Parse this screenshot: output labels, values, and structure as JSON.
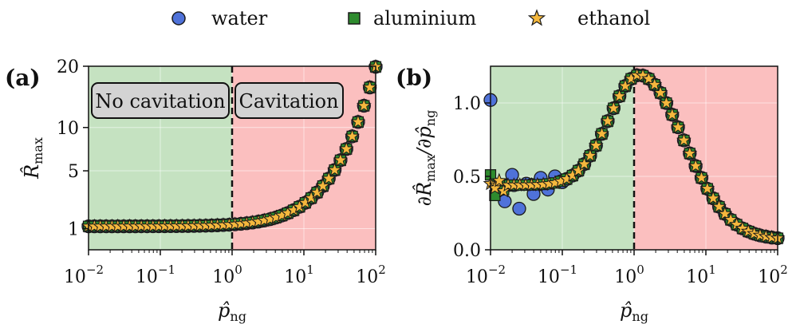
{
  "legend": [
    {
      "label": "water",
      "marker": "circle",
      "color": "#4f72d9"
    },
    {
      "label": "aluminium",
      "marker": "square",
      "color": "#2e8b2e"
    },
    {
      "label": "ethanol",
      "marker": "star",
      "color": "#f5b83d"
    }
  ],
  "colors": {
    "no_cavitation_bg": "#c5e2c1",
    "cavitation_bg": "#fbbfbf",
    "marker_edge": "#1a1a1a",
    "grid": "#ffffff"
  },
  "chart_data": [
    {
      "panel_label": "(a)",
      "type": "scatter",
      "xscale": "log",
      "xlim": [
        0.01,
        100
      ],
      "ylim": [
        0.3,
        20
      ],
      "xticks": [
        0.01,
        0.1,
        1,
        10,
        100
      ],
      "xtick_labels": [
        {
          "base": "10",
          "exp": "−2"
        },
        {
          "base": "10",
          "exp": "−1"
        },
        {
          "base": "10",
          "exp": "0"
        },
        {
          "base": "10",
          "exp": "1"
        },
        {
          "base": "10",
          "exp": "2"
        }
      ],
      "yticks": [
        1,
        5,
        10,
        20
      ],
      "ytick_labels": [
        "1",
        "5",
        "10",
        "20"
      ],
      "xlabel": {
        "main": "p̂",
        "sub": "ng"
      },
      "ylabel": {
        "main": "R̂",
        "sub": "max"
      },
      "threshold_x": 1,
      "regions": [
        {
          "label": "No cavitation"
        },
        {
          "label": "Cavitation"
        }
      ],
      "series": [
        {
          "name": "water",
          "x_logmin": -2,
          "x_logmax": 2,
          "n": 50,
          "model": "radius",
          "jitter": 0
        },
        {
          "name": "aluminium",
          "x_logmin": -2,
          "x_logmax": 2,
          "n": 50,
          "model": "radius",
          "jitter": 0
        },
        {
          "name": "ethanol",
          "x_logmin": -2,
          "x_logmax": 2,
          "n": 50,
          "model": "radius",
          "jitter": 0
        }
      ],
      "model_note": "R_max ≈ 1.1 for p_ng ≪ 1, rising to ≈ 19 at p_ng = 100"
    },
    {
      "panel_label": "(b)",
      "type": "scatter",
      "xscale": "log",
      "xlim": [
        0.01,
        100
      ],
      "ylim": [
        0,
        1.25
      ],
      "xticks": [
        0.01,
        0.1,
        1,
        10,
        100
      ],
      "xtick_labels": [
        {
          "base": "10",
          "exp": "−2"
        },
        {
          "base": "10",
          "exp": "−1"
        },
        {
          "base": "10",
          "exp": "0"
        },
        {
          "base": "10",
          "exp": "1"
        },
        {
          "base": "10",
          "exp": "2"
        }
      ],
      "yticks": [
        0.0,
        0.5,
        1.0
      ],
      "ytick_labels": [
        "0.0",
        "0.5",
        "1.0"
      ],
      "xlabel": {
        "main": "p̂",
        "sub": "ng"
      },
      "ylabel": {
        "main": "∂R̂",
        "sub": "max",
        "mid": "/∂p̂",
        "sub2": "ng"
      },
      "threshold_x": 1,
      "series": [
        {
          "name": "water",
          "x_logmin": -2,
          "x_logmax": 2,
          "n": 50,
          "model": "derivative",
          "overrides": [
            [
              0.01,
              1.02
            ],
            [
              0.0126,
              0.42
            ],
            [
              0.0158,
              0.33
            ],
            [
              0.02,
              0.51
            ],
            [
              0.0251,
              0.28
            ],
            [
              0.0316,
              0.45
            ],
            [
              0.0398,
              0.38
            ],
            [
              0.05,
              0.49
            ],
            [
              0.063,
              0.41
            ],
            [
              0.079,
              0.5
            ],
            [
              0.1,
              0.46
            ]
          ]
        },
        {
          "name": "aluminium",
          "x_logmin": -2,
          "x_logmax": 2,
          "n": 50,
          "model": "derivative",
          "overrides": [
            [
              0.01,
              0.51
            ],
            [
              0.0115,
              0.37
            ],
            [
              0.0132,
              0.44
            ],
            [
              0.0152,
              0.41
            ]
          ]
        },
        {
          "name": "ethanol",
          "x_logmin": -2,
          "x_logmax": 2,
          "n": 50,
          "model": "derivative",
          "overrides": [
            [
              0.01,
              0.45
            ],
            [
              0.0115,
              0.42
            ],
            [
              0.0132,
              0.47
            ],
            [
              0.0152,
              0.4
            ]
          ]
        }
      ],
      "model_note": "peak ≈ 1.19 near p_ng ≈ 1.2, ≈ 0.45 at low p_ng, ≈ 0.08 at p_ng = 100"
    }
  ]
}
